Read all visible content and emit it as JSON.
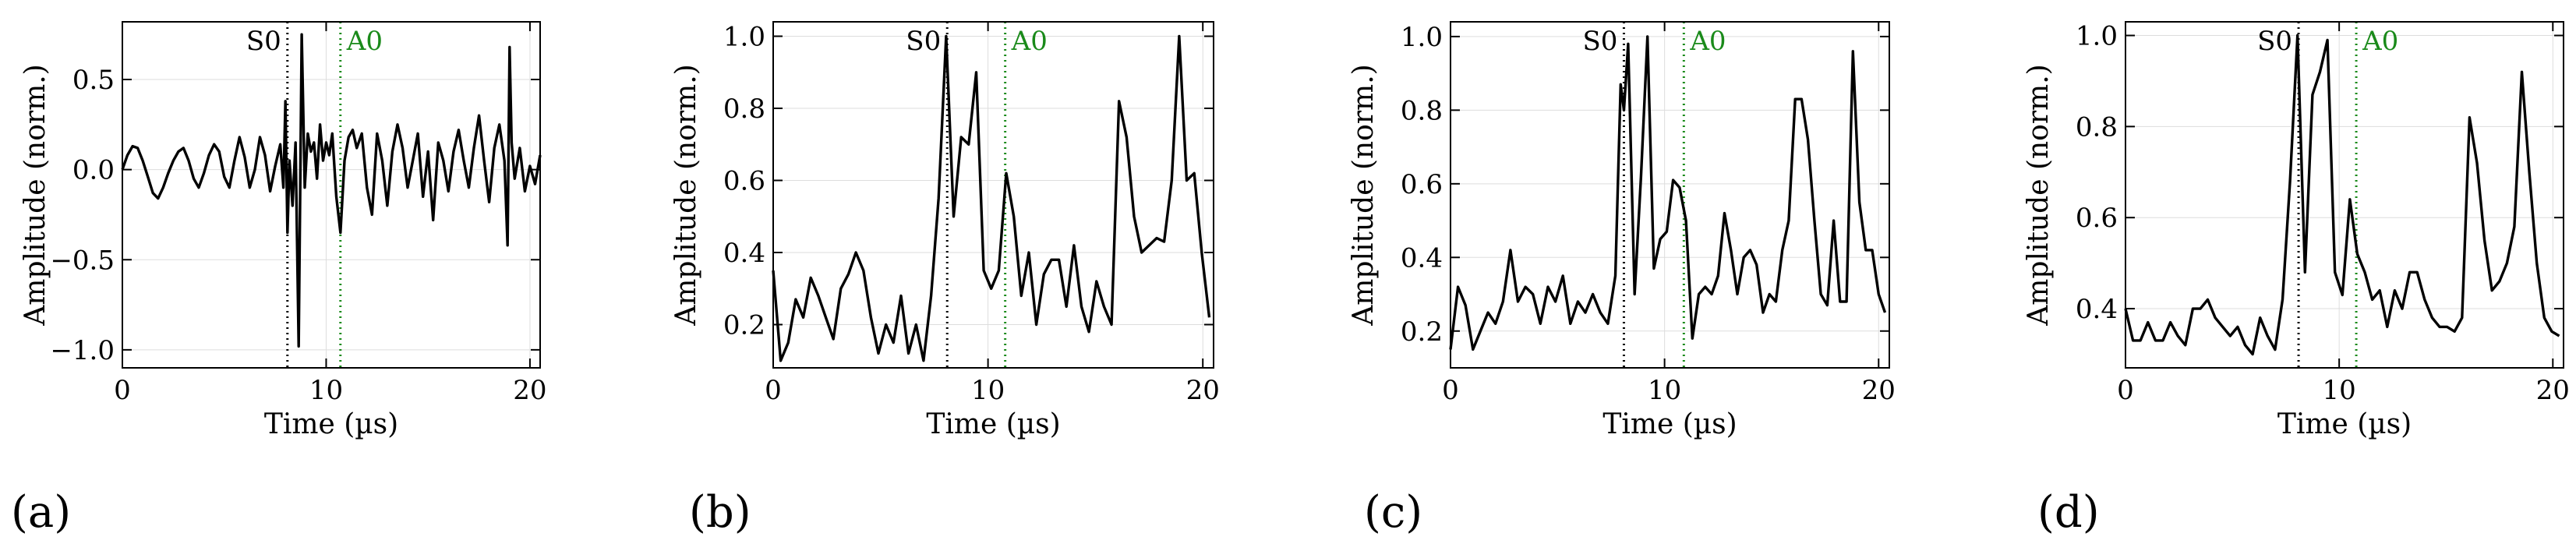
{
  "figure": {
    "panel_labels": [
      "(a)",
      "(b)",
      "(c)",
      "(d)"
    ]
  },
  "colors": {
    "series": "#000000",
    "s0_marker": "#000000",
    "a0_marker": "#1a8a1a",
    "grid": "#dddddd"
  },
  "chart_data": [
    {
      "type": "line",
      "panel": "(a)",
      "xlabel": "Time (µs)",
      "ylabel": "Amplitude (norm.)",
      "xlim": [
        0,
        20.5
      ],
      "ylim": [
        -1.1,
        0.82
      ],
      "xticks": [
        0,
        10,
        20
      ],
      "yticks": [
        -1.0,
        -0.5,
        0.0,
        0.5
      ],
      "ytick_labels": [
        "−1.0",
        "−0.5",
        "0.0",
        "0.5"
      ],
      "grid": true,
      "markers": [
        {
          "label": "S0",
          "x": 8.1,
          "style": "dotted",
          "color": "#000000"
        },
        {
          "label": "A0",
          "x": 10.7,
          "style": "dotted",
          "color": "#1a8a1a"
        }
      ],
      "series": [
        {
          "x": [
            0,
            0.25,
            0.5,
            0.75,
            1.0,
            1.25,
            1.5,
            1.75,
            2.0,
            2.25,
            2.5,
            2.75,
            3.0,
            3.25,
            3.5,
            3.75,
            4.0,
            4.25,
            4.5,
            4.75,
            5.0,
            5.25,
            5.5,
            5.75,
            6.0,
            6.25,
            6.5,
            6.75,
            7.0,
            7.25,
            7.5,
            7.75,
            7.9,
            8.0,
            8.1,
            8.2,
            8.35,
            8.5,
            8.65,
            8.8,
            8.95,
            9.1,
            9.25,
            9.4,
            9.55,
            9.7,
            9.85,
            10.0,
            10.15,
            10.3,
            10.5,
            10.7,
            10.9,
            11.1,
            11.3,
            11.5,
            11.75,
            12.0,
            12.25,
            12.5,
            12.75,
            13.0,
            13.25,
            13.5,
            13.75,
            14.0,
            14.25,
            14.5,
            14.75,
            15.0,
            15.25,
            15.5,
            15.75,
            16.0,
            16.25,
            16.5,
            16.75,
            17.0,
            17.25,
            17.5,
            17.75,
            18.0,
            18.25,
            18.5,
            18.75,
            18.9,
            19.0,
            19.1,
            19.25,
            19.5,
            19.75,
            20.0,
            20.25,
            20.5
          ],
          "y": [
            0.0,
            0.08,
            0.13,
            0.12,
            0.05,
            -0.04,
            -0.13,
            -0.16,
            -0.1,
            -0.02,
            0.05,
            0.1,
            0.12,
            0.05,
            -0.05,
            -0.1,
            -0.02,
            0.08,
            0.14,
            0.1,
            -0.04,
            -0.1,
            0.05,
            0.18,
            0.07,
            -0.1,
            0.0,
            0.18,
            0.08,
            -0.12,
            0.02,
            0.14,
            -0.1,
            0.38,
            -0.35,
            0.05,
            -0.2,
            0.15,
            -0.98,
            0.75,
            -0.1,
            0.2,
            0.1,
            0.15,
            -0.05,
            0.25,
            0.05,
            0.15,
            0.08,
            0.2,
            -0.15,
            -0.35,
            0.05,
            0.18,
            0.22,
            0.12,
            0.2,
            -0.1,
            -0.25,
            0.2,
            0.05,
            -0.2,
            0.1,
            0.25,
            0.12,
            -0.1,
            0.05,
            0.2,
            -0.15,
            0.1,
            -0.28,
            0.15,
            0.05,
            -0.12,
            0.1,
            0.22,
            0.05,
            -0.1,
            0.12,
            0.3,
            0.05,
            -0.18,
            0.12,
            0.25,
            0.05,
            -0.42,
            0.68,
            0.15,
            -0.05,
            0.12,
            -0.12,
            0.02,
            -0.08,
            0.08
          ]
        }
      ]
    },
    {
      "type": "line",
      "panel": "(b)",
      "xlabel": "Time (µs)",
      "ylabel": "Amplitude (norm.)",
      "xlim": [
        0,
        20.5
      ],
      "ylim": [
        0.08,
        1.04
      ],
      "xticks": [
        0,
        10,
        20
      ],
      "yticks": [
        0.2,
        0.4,
        0.6,
        0.8,
        1.0
      ],
      "ytick_labels": [
        "0.2",
        "0.4",
        "0.6",
        "0.8",
        "1.0"
      ],
      "grid": true,
      "markers": [
        {
          "label": "S0",
          "x": 8.1,
          "style": "dotted",
          "color": "#000000"
        },
        {
          "label": "A0",
          "x": 10.8,
          "style": "dotted",
          "color": "#1a8a1a"
        }
      ],
      "series": [
        {
          "x": [
            0,
            0.35,
            0.7,
            1.05,
            1.4,
            1.75,
            2.1,
            2.45,
            2.8,
            3.15,
            3.5,
            3.85,
            4.2,
            4.55,
            4.9,
            5.25,
            5.6,
            5.95,
            6.3,
            6.65,
            7.0,
            7.35,
            7.7,
            8.05,
            8.4,
            8.75,
            9.1,
            9.45,
            9.8,
            10.15,
            10.5,
            10.85,
            11.2,
            11.55,
            11.9,
            12.25,
            12.6,
            12.95,
            13.3,
            13.65,
            14.0,
            14.35,
            14.7,
            15.05,
            15.4,
            15.75,
            16.1,
            16.45,
            16.8,
            17.15,
            17.5,
            17.85,
            18.2,
            18.55,
            18.9,
            19.25,
            19.6,
            19.95,
            20.3
          ],
          "y": [
            0.35,
            0.1,
            0.15,
            0.27,
            0.22,
            0.33,
            0.28,
            0.22,
            0.16,
            0.3,
            0.34,
            0.4,
            0.35,
            0.22,
            0.12,
            0.2,
            0.15,
            0.28,
            0.12,
            0.2,
            0.1,
            0.28,
            0.55,
            1.0,
            0.5,
            0.72,
            0.7,
            0.9,
            0.35,
            0.3,
            0.35,
            0.62,
            0.5,
            0.28,
            0.4,
            0.2,
            0.34,
            0.38,
            0.38,
            0.25,
            0.42,
            0.25,
            0.18,
            0.32,
            0.25,
            0.2,
            0.82,
            0.72,
            0.5,
            0.4,
            0.42,
            0.44,
            0.43,
            0.6,
            1.0,
            0.6,
            0.62,
            0.4,
            0.22
          ]
        }
      ]
    },
    {
      "type": "line",
      "panel": "(c)",
      "xlabel": "Time (µs)",
      "ylabel": "Amplitude (norm.)",
      "xlim": [
        0,
        20.5
      ],
      "ylim": [
        0.1,
        1.04
      ],
      "xticks": [
        0,
        10,
        20
      ],
      "yticks": [
        0.2,
        0.4,
        0.6,
        0.8,
        1.0
      ],
      "ytick_labels": [
        "0.2",
        "0.4",
        "0.6",
        "0.8",
        "1.0"
      ],
      "grid": true,
      "markers": [
        {
          "label": "S0",
          "x": 8.1,
          "style": "dotted",
          "color": "#000000"
        },
        {
          "label": "A0",
          "x": 10.9,
          "style": "dotted",
          "color": "#1a8a1a"
        }
      ],
      "series": [
        {
          "x": [
            0,
            0.35,
            0.7,
            1.05,
            1.4,
            1.75,
            2.1,
            2.45,
            2.8,
            3.15,
            3.5,
            3.85,
            4.2,
            4.55,
            4.9,
            5.25,
            5.6,
            5.95,
            6.3,
            6.65,
            7.0,
            7.35,
            7.7,
            7.95,
            8.1,
            8.3,
            8.6,
            8.9,
            9.2,
            9.5,
            9.8,
            10.1,
            10.4,
            10.7,
            11.0,
            11.3,
            11.6,
            11.9,
            12.2,
            12.5,
            12.8,
            13.1,
            13.4,
            13.7,
            14.0,
            14.3,
            14.6,
            14.9,
            15.2,
            15.5,
            15.8,
            16.1,
            16.4,
            16.7,
            17.0,
            17.3,
            17.6,
            17.9,
            18.2,
            18.5,
            18.8,
            19.1,
            19.4,
            19.7,
            20.0,
            20.3
          ],
          "y": [
            0.15,
            0.32,
            0.27,
            0.15,
            0.2,
            0.25,
            0.22,
            0.28,
            0.42,
            0.28,
            0.32,
            0.3,
            0.22,
            0.32,
            0.28,
            0.35,
            0.22,
            0.28,
            0.25,
            0.3,
            0.25,
            0.22,
            0.35,
            0.87,
            0.8,
            0.98,
            0.3,
            0.62,
            1.0,
            0.37,
            0.45,
            0.47,
            0.61,
            0.59,
            0.5,
            0.18,
            0.3,
            0.32,
            0.3,
            0.35,
            0.52,
            0.42,
            0.3,
            0.4,
            0.42,
            0.38,
            0.25,
            0.3,
            0.28,
            0.42,
            0.5,
            0.83,
            0.83,
            0.72,
            0.5,
            0.3,
            0.27,
            0.5,
            0.28,
            0.28,
            0.96,
            0.55,
            0.42,
            0.42,
            0.3,
            0.25
          ]
        }
      ]
    },
    {
      "type": "line",
      "panel": "(d)",
      "xlabel": "Time (µs)",
      "ylabel": "Amplitude (norm.)",
      "xlim": [
        0,
        20.5
      ],
      "ylim": [
        0.27,
        1.03
      ],
      "xticks": [
        0,
        10,
        20
      ],
      "yticks": [
        0.4,
        0.6,
        0.8,
        1.0
      ],
      "ytick_labels": [
        "0.4",
        "0.6",
        "0.8",
        "1.0"
      ],
      "grid": true,
      "markers": [
        {
          "label": "S0",
          "x": 8.1,
          "style": "dotted",
          "color": "#000000"
        },
        {
          "label": "A0",
          "x": 10.8,
          "style": "dotted",
          "color": "#1a8a1a"
        }
      ],
      "series": [
        {
          "x": [
            0,
            0.35,
            0.7,
            1.05,
            1.4,
            1.75,
            2.1,
            2.45,
            2.8,
            3.15,
            3.5,
            3.85,
            4.2,
            4.55,
            4.9,
            5.25,
            5.6,
            5.95,
            6.3,
            6.65,
            7.0,
            7.35,
            7.7,
            8.05,
            8.4,
            8.75,
            9.1,
            9.45,
            9.8,
            10.15,
            10.5,
            10.85,
            11.2,
            11.55,
            11.9,
            12.25,
            12.6,
            12.95,
            13.3,
            13.65,
            14.0,
            14.35,
            14.7,
            15.05,
            15.4,
            15.75,
            16.1,
            16.45,
            16.8,
            17.15,
            17.5,
            17.85,
            18.2,
            18.55,
            18.9,
            19.25,
            19.6,
            19.95,
            20.3
          ],
          "y": [
            0.4,
            0.33,
            0.33,
            0.37,
            0.33,
            0.33,
            0.37,
            0.34,
            0.32,
            0.4,
            0.4,
            0.42,
            0.38,
            0.36,
            0.34,
            0.36,
            0.32,
            0.3,
            0.38,
            0.34,
            0.31,
            0.42,
            0.68,
            1.0,
            0.48,
            0.87,
            0.92,
            0.99,
            0.48,
            0.43,
            0.64,
            0.52,
            0.48,
            0.42,
            0.44,
            0.36,
            0.44,
            0.4,
            0.48,
            0.48,
            0.42,
            0.38,
            0.36,
            0.36,
            0.35,
            0.38,
            0.82,
            0.72,
            0.55,
            0.44,
            0.46,
            0.5,
            0.58,
            0.92,
            0.7,
            0.5,
            0.38,
            0.35,
            0.34
          ]
        }
      ]
    }
  ]
}
